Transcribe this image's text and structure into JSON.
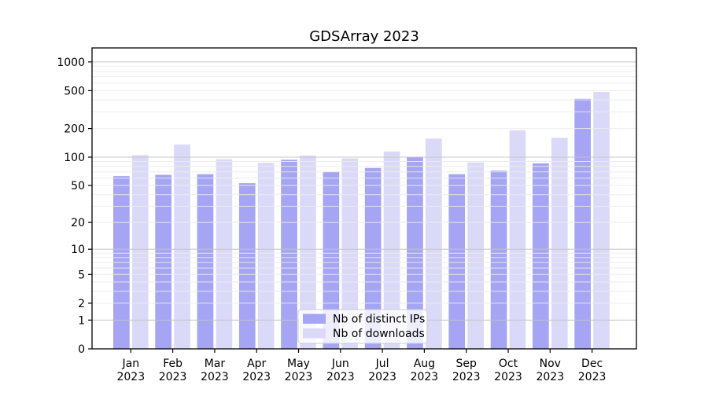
{
  "chart_data": {
    "type": "bar",
    "title": "GDSArray 2023",
    "categories": [
      "Jan",
      "Feb",
      "Mar",
      "Apr",
      "May",
      "Jun",
      "Jul",
      "Aug",
      "Sep",
      "Oct",
      "Nov",
      "Dec"
    ],
    "year": "2023",
    "series": [
      {
        "name": "Nb of distinct IPs",
        "color": "#a5a5f3",
        "values": [
          63,
          65,
          66,
          53,
          94,
          70,
          77,
          101,
          66,
          72,
          86,
          410
        ]
      },
      {
        "name": "Nb of downloads",
        "color": "#dadaf8",
        "values": [
          105,
          136,
          95,
          87,
          104,
          97,
          115,
          157,
          88,
          192,
          160,
          485
        ]
      }
    ],
    "y_ticks": [
      0,
      1,
      2,
      5,
      10,
      20,
      50,
      100,
      200,
      500,
      1000
    ],
    "y_scale": "log1p",
    "ylim": [
      0,
      1400
    ],
    "xlabel": "",
    "ylabel": "",
    "grid": "horizontal major+minor",
    "legend_position": "bottom-center",
    "colors": {
      "major_grid": "#c3c3c3",
      "minor_grid": "#ebebeb",
      "axis": "#000000",
      "legend_border": "#cccccc"
    }
  }
}
